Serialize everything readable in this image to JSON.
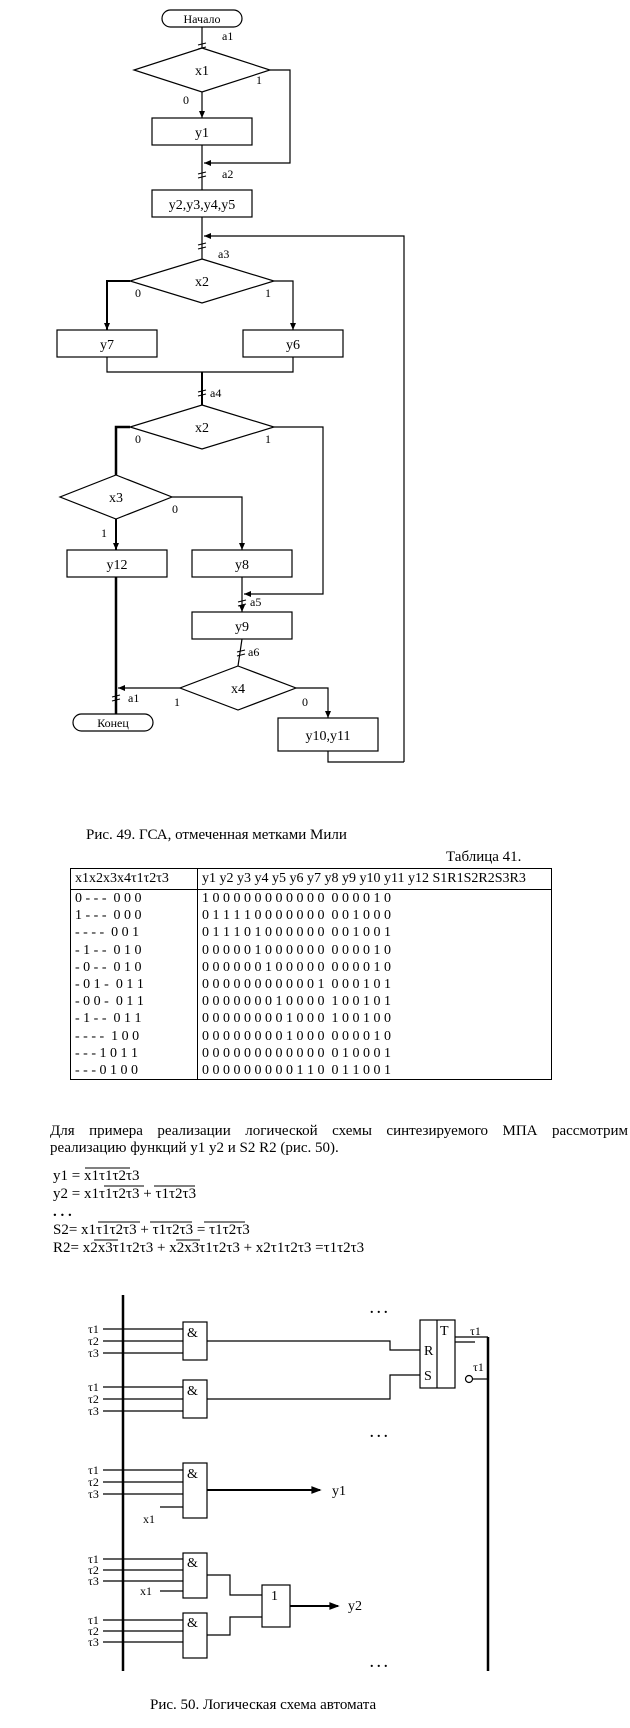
{
  "flowchart": {
    "start_label": "Начало",
    "end_label": "Конец",
    "conditions": [
      "x1",
      "x2",
      "x2",
      "x3",
      "x4"
    ],
    "operations": [
      "y1",
      "y2,y3,y4,y5",
      "y7",
      "y6",
      "y12",
      "y8",
      "y9",
      "y10,y11"
    ],
    "marks": [
      "a1",
      "a2",
      "a3",
      "a4",
      "a5",
      "a6",
      "a1"
    ],
    "branch_labels": [
      "0",
      "1"
    ]
  },
  "fig49_caption": "Рис. 49. ГСА, отмеченная метками Мили",
  "table": {
    "caption": "Таблица 41.",
    "header_left": "x1x2x3x4τ1τ2τ3",
    "header_right": "y1 y2 y3 y4 y5 y6 y7 y8 y9 y10 y11 y12 S1R1S2R2S3R3",
    "rows": [
      {
        "inputs": "0 - - -  0 0 0",
        "outputs": "1 0 0 0 0 0 0 0 0 0 0 0  0 0 0 0 1 0"
      },
      {
        "inputs": "1 - - -  0 0 0",
        "outputs": "0 1 1 1 1 0 0 0 0 0 0 0  0 0 1 0 0 0"
      },
      {
        "inputs": "- - - -  0 0 1",
        "outputs": "0 1 1 1 0 1 0 0 0 0 0 0  0 0 1 0 0 1"
      },
      {
        "inputs": "- 1 - -  0 1 0",
        "outputs": "0 0 0 0 0 1 0 0 0 0 0 0  0 0 0 0 1 0"
      },
      {
        "inputs": "- 0 - -  0 1 0",
        "outputs": "0 0 0 0 0 0 1 0 0 0 0 0  0 0 0 0 1 0"
      },
      {
        "inputs": "- 0 1 -  0 1 1",
        "outputs": "0 0 0 0 0 0 0 0 0 0 0 1  0 0 0 1 0 1"
      },
      {
        "inputs": "- 0 0 -  0 1 1",
        "outputs": "0 0 0 0 0 0 0 1 0 0 0 0  1 0 0 1 0 1"
      },
      {
        "inputs": "- 1 - -  0 1 1",
        "outputs": "0 0 0 0 0 0 0 0 1 0 0 0  1 0 0 1 0 0"
      },
      {
        "inputs": "- - - -  1 0 0",
        "outputs": "0 0 0 0 0 0 0 0 1 0 0 0  0 0 0 0 1 0"
      },
      {
        "inputs": "- - - 1 0 1 1",
        "outputs": "0 0 0 0 0 0 0 0 0 0 0 0  0 1 0 0 0 1"
      },
      {
        "inputs": "- - - 0 1 0 0",
        "outputs": "0 0 0 0 0 0 0 0 0 1 1 0  0 1 1 0 0 1"
      }
    ]
  },
  "paragraph": "Для примера реализации логической схемы синтезируемого МПА рассмотрим реализацию функций y1 y2 и  S2 R2 (рис. 50).",
  "formulas": {
    "y1": "y1 = x1τ1τ2τ3",
    "y2": "y2 = x1τ1τ2τ3 + τ1τ2τ3",
    "dots": ". . .",
    "S2": "S2= x1τ1τ2τ3 + τ1τ2τ3 = τ1τ2τ3",
    "R2": "R2= x2x3τ1τ2τ3 + x2x3τ1τ2τ3 + x2τ1τ2τ3 =τ1τ2τ3"
  },
  "circuit": {
    "and_label": "&",
    "or_label": "1",
    "trigger_r": "R",
    "trigger_s": "S",
    "trigger_t": "T",
    "out_t": "τ1",
    "out_nt": "τ1",
    "y1": "y1",
    "y2": "y2",
    "dots": ". . .",
    "tau1": "τ1",
    "tau2": "τ2",
    "tau3": "τ3",
    "x1": "x1"
  },
  "fig50_caption": "Рис. 50. Логическая схема автомата"
}
